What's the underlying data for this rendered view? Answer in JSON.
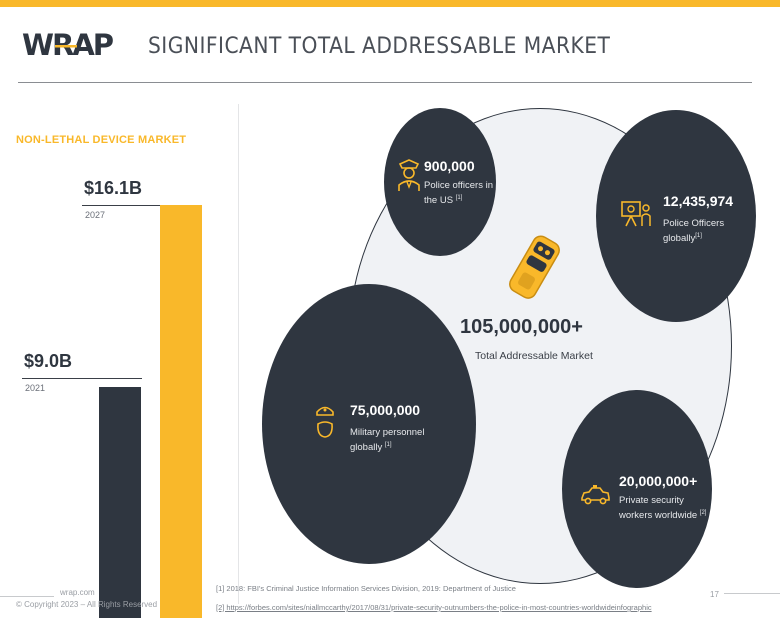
{
  "header": {
    "logo_text": "WRAP",
    "title": "SIGNIFICANT TOTAL ADDRESSABLE MARKET"
  },
  "market": {
    "label": "NON-LETHAL DEVICE MARKET",
    "bars": [
      {
        "value_label": "$9.0B",
        "year": "2021",
        "value": 9.0
      },
      {
        "value_label": "$16.1B",
        "year": "2027",
        "value": 16.1
      }
    ]
  },
  "tam": {
    "total": "105,000,000+",
    "label": "Total Addressable Market"
  },
  "stats": [
    {
      "number": "900,000",
      "desc_line1": "Police officers in",
      "desc_line2": "the US",
      "ref": "[1]",
      "icon": "police-officer-icon"
    },
    {
      "number": "12,435,974",
      "desc_line1": "Police Officers",
      "desc_line2": "globally",
      "ref": "[1]",
      "icon": "presenter-icon"
    },
    {
      "number": "75,000,000",
      "desc_line1": "Military personnel",
      "desc_line2": "globally",
      "ref": "[1]",
      "icon": "military-icon"
    },
    {
      "number": "20,000,000+",
      "desc_line1": "Private security",
      "desc_line2": "workers worldwide",
      "ref": "[2]",
      "icon": "car-icon"
    }
  ],
  "footnotes": [
    "[1] 2018: FBI's Criminal Justice Information Services Division, 2019: Department of Justice",
    "[2] https://forbes.com/sites/niallmccarthy/2017/08/31/private-security-outnumbers-the-police-in-most-countries-worldwideinfographic"
  ],
  "footer": {
    "site": "wrap.com",
    "copyright": "© Copyright 2023 – All Rights Reserved",
    "page": "17"
  },
  "colors": {
    "accent": "#f9b82a",
    "dark": "#2f3640"
  }
}
